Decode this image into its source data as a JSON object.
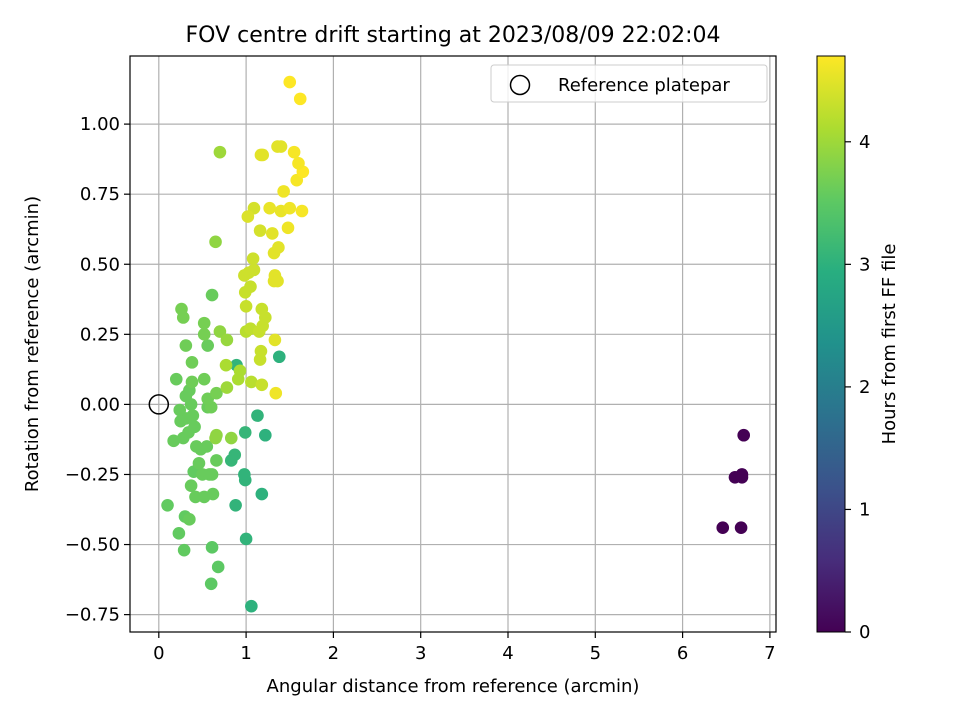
{
  "chart_data": {
    "type": "scatter",
    "title": "FOV centre drift starting at 2023/08/09 22:02:04",
    "xlabel": "Angular distance from reference (arcmin)",
    "ylabel": "Rotation from reference (arcmin)",
    "xlim": [
      -0.33,
      7.07
    ],
    "ylim": [
      -0.812,
      1.243
    ],
    "xticks": [
      0,
      1,
      2,
      3,
      4,
      5,
      6,
      7
    ],
    "xtick_labels": [
      "0",
      "1",
      "2",
      "3",
      "4",
      "5",
      "6",
      "7"
    ],
    "yticks": [
      -0.75,
      -0.5,
      -0.25,
      0.0,
      0.25,
      0.5,
      0.75,
      1.0
    ],
    "ytick_labels": [
      "−0.75",
      "−0.50",
      "−0.25",
      "0.00",
      "0.25",
      "0.50",
      "0.75",
      "1.00"
    ],
    "grid": true,
    "legend": {
      "position": "top-right",
      "entries": [
        {
          "label": "Reference platepar",
          "marker": "open-circle"
        }
      ]
    },
    "reference_point": {
      "x": 0.0,
      "y": 0.0
    },
    "colorbar": {
      "label": "Hours from first FF file",
      "colormap": "viridis",
      "range": [
        0,
        4.7
      ],
      "ticks": [
        0,
        1,
        2,
        3,
        4
      ],
      "tick_labels": [
        "0",
        "1",
        "2",
        "3",
        "4"
      ]
    },
    "series": [
      {
        "points": [
          [
            6.7,
            -0.11,
            0.0
          ],
          [
            6.68,
            -0.25,
            0.0
          ],
          [
            6.6,
            -0.26,
            0.0
          ],
          [
            6.68,
            -0.26,
            0.0
          ],
          [
            6.46,
            -0.44,
            0.0
          ],
          [
            6.67,
            -0.44,
            0.0
          ],
          [
            1.06,
            -0.72,
            3.0
          ],
          [
            1.0,
            -0.48,
            3.05
          ],
          [
            0.88,
            -0.36,
            3.05
          ],
          [
            1.18,
            -0.32,
            3.0
          ],
          [
            0.99,
            -0.27,
            3.05
          ],
          [
            0.98,
            -0.25,
            3.05
          ],
          [
            0.83,
            -0.2,
            3.1
          ],
          [
            0.87,
            -0.18,
            3.1
          ],
          [
            0.99,
            -0.1,
            3.1
          ],
          [
            1.22,
            -0.11,
            3.0
          ],
          [
            1.13,
            -0.04,
            3.05
          ],
          [
            0.89,
            0.14,
            3.05
          ],
          [
            1.38,
            0.17,
            3.0
          ],
          [
            0.6,
            -0.64,
            3.5
          ],
          [
            0.68,
            -0.58,
            3.5
          ],
          [
            0.61,
            -0.51,
            3.5
          ],
          [
            0.29,
            -0.52,
            3.55
          ],
          [
            0.23,
            -0.46,
            3.55
          ],
          [
            0.1,
            -0.36,
            3.55
          ],
          [
            0.3,
            -0.4,
            3.55
          ],
          [
            0.35,
            -0.41,
            3.6
          ],
          [
            0.42,
            -0.33,
            3.6
          ],
          [
            0.52,
            -0.33,
            3.6
          ],
          [
            0.62,
            -0.32,
            3.6
          ],
          [
            0.37,
            -0.29,
            3.6
          ],
          [
            0.4,
            -0.24,
            3.55
          ],
          [
            0.5,
            -0.25,
            3.6
          ],
          [
            0.58,
            -0.25,
            3.6
          ],
          [
            0.61,
            -0.25,
            3.6
          ],
          [
            0.46,
            -0.21,
            3.6
          ],
          [
            0.66,
            -0.2,
            3.6
          ],
          [
            0.48,
            -0.16,
            3.6
          ],
          [
            0.55,
            -0.15,
            3.6
          ],
          [
            0.43,
            -0.15,
            3.6
          ],
          [
            0.17,
            -0.13,
            3.6
          ],
          [
            0.28,
            -0.12,
            3.6
          ],
          [
            0.34,
            -0.1,
            3.6
          ],
          [
            0.41,
            -0.08,
            3.6
          ],
          [
            0.25,
            -0.06,
            3.6
          ],
          [
            0.31,
            -0.05,
            3.6
          ],
          [
            0.39,
            -0.04,
            3.6
          ],
          [
            0.24,
            -0.02,
            3.6
          ],
          [
            0.56,
            -0.01,
            3.6
          ],
          [
            0.6,
            -0.01,
            3.65
          ],
          [
            0.37,
            0.0,
            3.6
          ],
          [
            0.56,
            0.02,
            3.65
          ],
          [
            0.31,
            0.03,
            3.6
          ],
          [
            0.35,
            0.05,
            3.6
          ],
          [
            0.66,
            0.04,
            3.7
          ],
          [
            0.38,
            0.08,
            3.65
          ],
          [
            0.52,
            0.09,
            3.65
          ],
          [
            0.2,
            0.09,
            3.6
          ],
          [
            0.38,
            0.15,
            3.65
          ],
          [
            0.31,
            0.21,
            3.65
          ],
          [
            0.56,
            0.21,
            3.6
          ],
          [
            0.52,
            0.25,
            3.7
          ],
          [
            0.52,
            0.29,
            3.7
          ],
          [
            0.28,
            0.31,
            3.7
          ],
          [
            0.26,
            0.34,
            3.7
          ],
          [
            0.61,
            0.39,
            3.6
          ],
          [
            0.66,
            -0.11,
            3.9
          ],
          [
            0.65,
            -0.12,
            3.9
          ],
          [
            0.83,
            -0.12,
            3.9
          ],
          [
            0.7,
            0.9,
            4.0
          ],
          [
            0.65,
            0.58,
            3.9
          ],
          [
            0.7,
            0.26,
            3.9
          ],
          [
            0.78,
            0.23,
            3.95
          ],
          [
            0.78,
            0.06,
            4.0
          ],
          [
            0.91,
            0.09,
            4.1
          ],
          [
            0.77,
            0.14,
            4.1
          ],
          [
            0.93,
            0.12,
            4.1
          ],
          [
            1.06,
            0.08,
            4.2
          ],
          [
            1.0,
            0.26,
            4.2
          ],
          [
            1.05,
            0.27,
            4.25
          ],
          [
            1.15,
            0.26,
            4.3
          ],
          [
            1.19,
            0.28,
            4.3
          ],
          [
            1.22,
            0.31,
            4.3
          ],
          [
            1.18,
            0.34,
            4.3
          ],
          [
            1.16,
            0.16,
            4.3
          ],
          [
            1.17,
            0.19,
            4.3
          ],
          [
            1.0,
            0.35,
            4.3
          ],
          [
            0.99,
            0.4,
            4.3
          ],
          [
            1.05,
            0.42,
            4.3
          ],
          [
            0.98,
            0.46,
            4.35
          ],
          [
            1.03,
            0.47,
            4.35
          ],
          [
            1.09,
            0.48,
            4.35
          ],
          [
            1.08,
            0.52,
            4.35
          ],
          [
            1.16,
            0.62,
            4.4
          ],
          [
            1.09,
            0.7,
            4.4
          ],
          [
            1.02,
            0.67,
            4.45
          ],
          [
            1.18,
            0.07,
            4.3
          ],
          [
            1.34,
            0.04,
            4.6
          ],
          [
            1.33,
            0.23,
            4.5
          ],
          [
            1.32,
            0.44,
            4.5
          ],
          [
            1.33,
            0.46,
            4.5
          ],
          [
            1.36,
            0.44,
            4.5
          ],
          [
            1.32,
            0.54,
            4.5
          ],
          [
            1.37,
            0.56,
            4.5
          ],
          [
            1.3,
            0.61,
            4.5
          ],
          [
            1.48,
            0.63,
            4.6
          ],
          [
            1.27,
            0.7,
            4.55
          ],
          [
            1.4,
            0.69,
            4.55
          ],
          [
            1.5,
            0.7,
            4.6
          ],
          [
            1.64,
            0.69,
            4.65
          ],
          [
            1.43,
            0.76,
            4.6
          ],
          [
            1.58,
            0.8,
            4.65
          ],
          [
            1.65,
            0.83,
            4.7
          ],
          [
            1.6,
            0.86,
            4.65
          ],
          [
            1.55,
            0.9,
            4.65
          ],
          [
            1.17,
            0.89,
            4.5
          ],
          [
            1.19,
            0.89,
            4.5
          ],
          [
            1.36,
            0.92,
            4.5
          ],
          [
            1.4,
            0.92,
            4.5
          ],
          [
            1.5,
            1.15,
            4.7
          ],
          [
            1.62,
            1.09,
            4.7
          ]
        ]
      }
    ]
  }
}
